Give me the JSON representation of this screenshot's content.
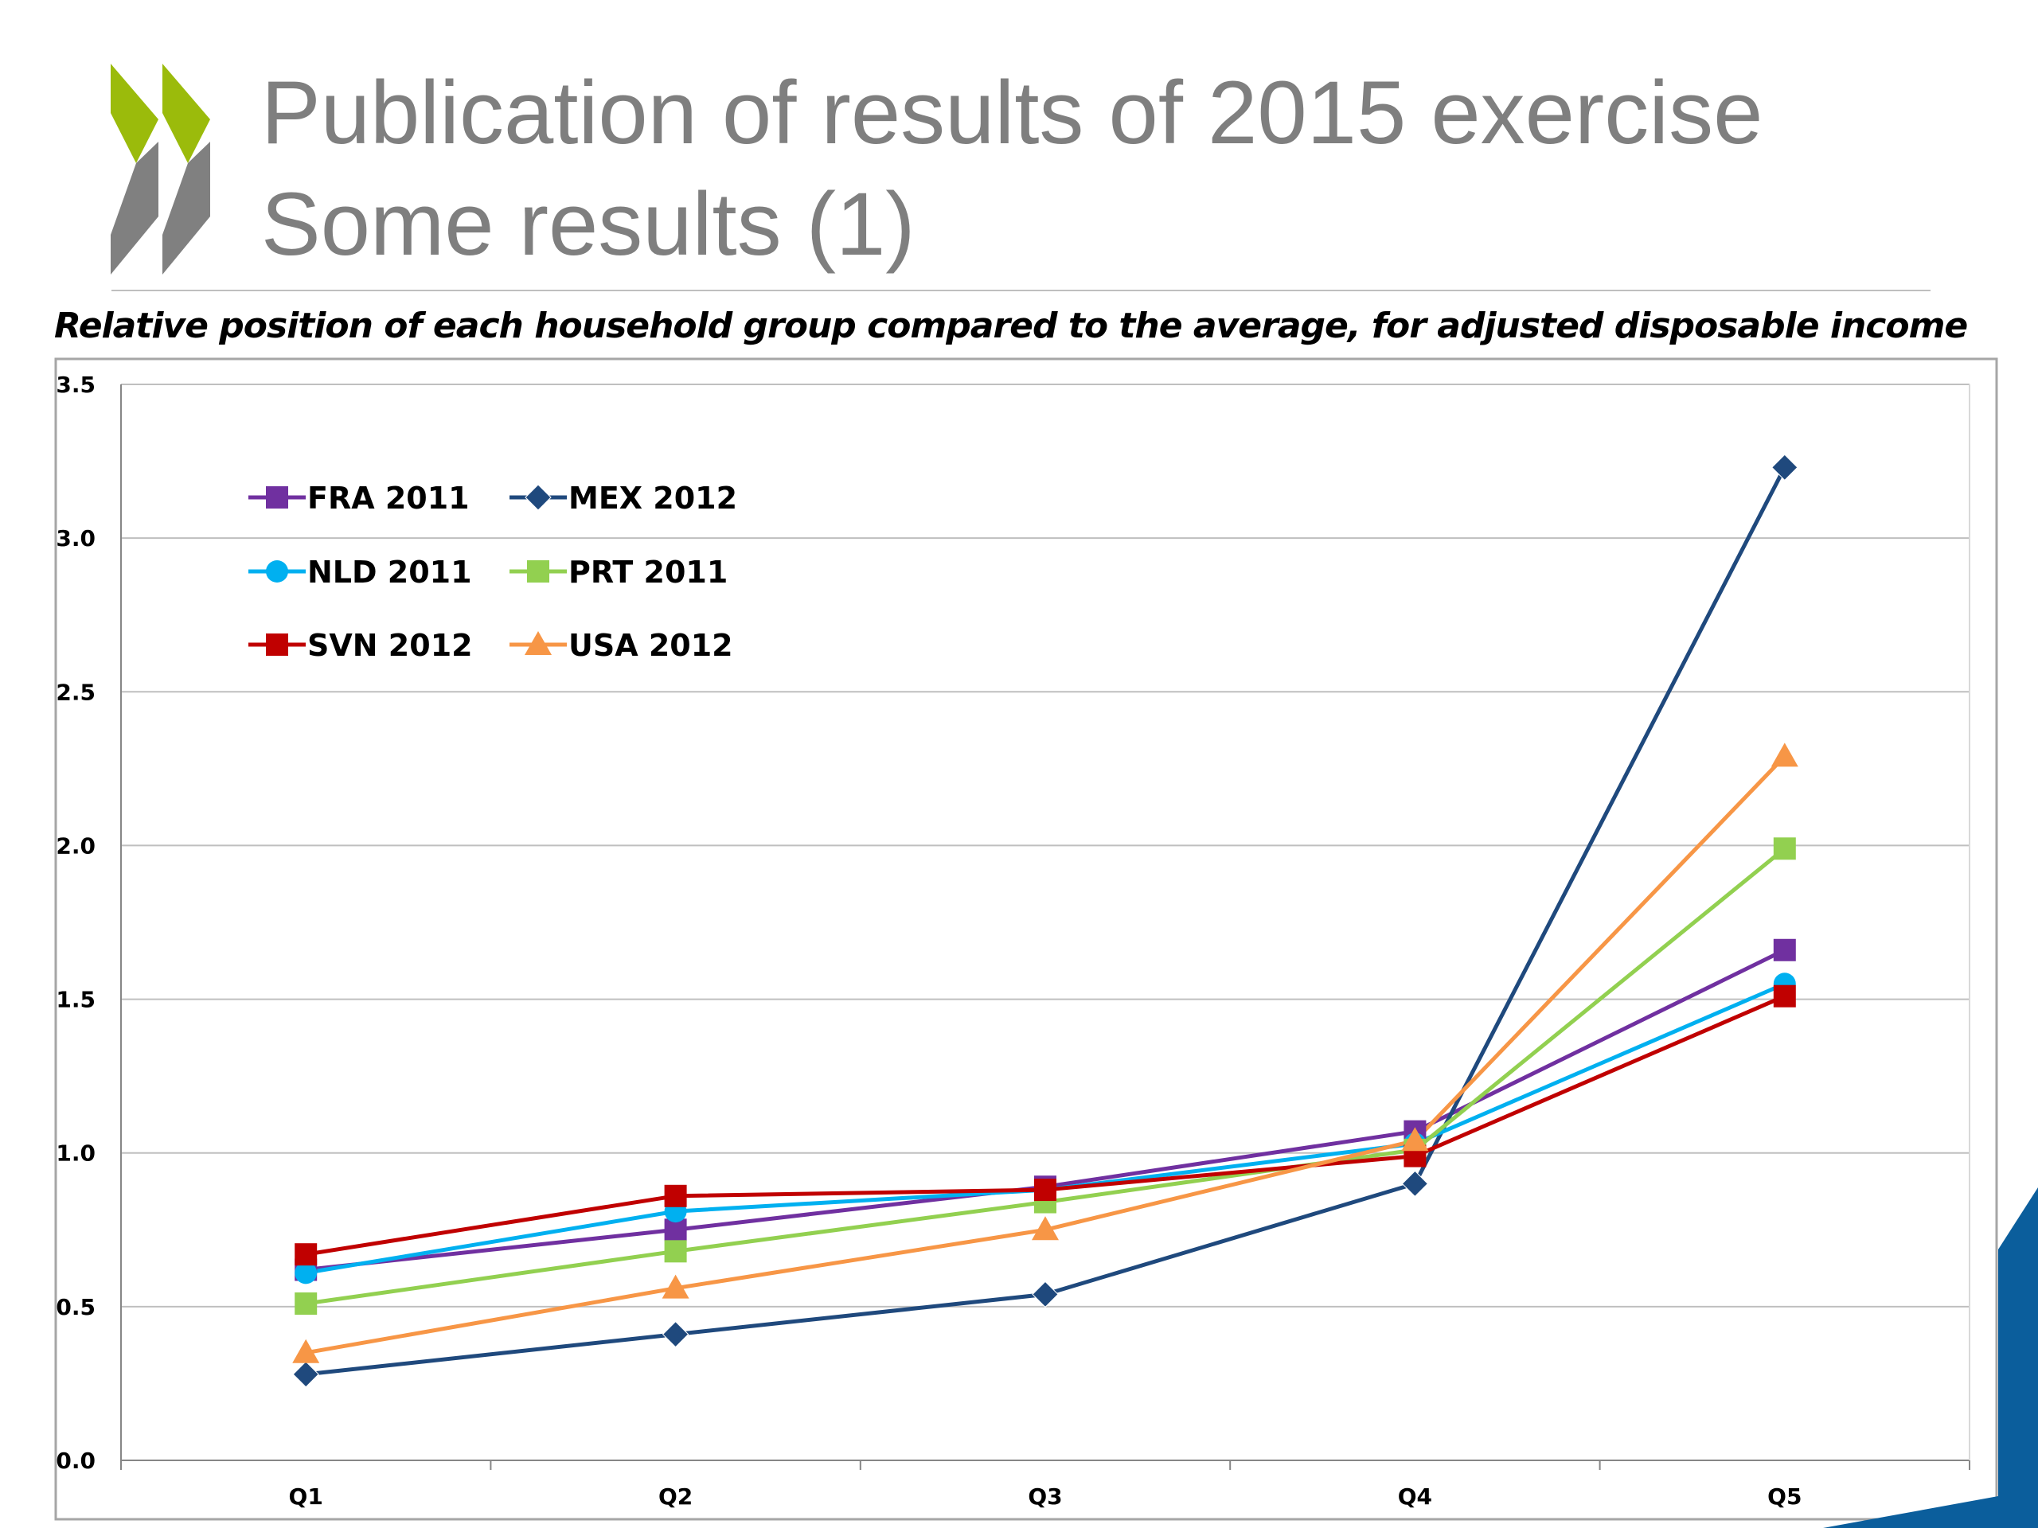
{
  "slide": {
    "title_line1": "Publication of results of 2015 exercise",
    "title_line2": "Some results (1)",
    "subtitle": "Relative position of each household group compared to the average, for adjusted disposable income"
  },
  "colors": {
    "title": "#7f7f7f",
    "logo_green": "#9bbb0b",
    "logo_grey": "#808080",
    "accent_blue": "#0b5e9c",
    "gridline": "#bfbfbf"
  },
  "chart_data": {
    "type": "line",
    "categories": [
      "Q1",
      "Q2",
      "Q3",
      "Q4",
      "Q5"
    ],
    "ylim": [
      0,
      3.5
    ],
    "yticks": [
      "0.0",
      "0.5",
      "1.0",
      "1.5",
      "2.0",
      "2.5",
      "3.0",
      "3.5"
    ],
    "grid": true,
    "legend_position": "top-left",
    "series": [
      {
        "name": "FRA 2011",
        "color": "#7030a0",
        "marker": "square",
        "values": [
          0.62,
          0.75,
          0.89,
          1.07,
          1.66
        ]
      },
      {
        "name": "MEX 2012",
        "color": "#1f497d",
        "marker": "diamond",
        "values": [
          0.28,
          0.41,
          0.54,
          0.9,
          3.23
        ]
      },
      {
        "name": "NLD 2011",
        "color": "#00b0f0",
        "marker": "circle",
        "values": [
          0.61,
          0.81,
          0.88,
          1.03,
          1.55
        ]
      },
      {
        "name": "PRT 2011",
        "color": "#92d050",
        "marker": "square",
        "values": [
          0.51,
          0.68,
          0.84,
          1.01,
          1.99
        ]
      },
      {
        "name": "SVN 2012",
        "color": "#c00000",
        "marker": "square",
        "values": [
          0.67,
          0.86,
          0.88,
          0.99,
          1.51
        ]
      },
      {
        "name": "USA 2012",
        "color": "#f79646",
        "marker": "triangle",
        "values": [
          0.35,
          0.56,
          0.75,
          1.04,
          2.29
        ]
      }
    ]
  }
}
